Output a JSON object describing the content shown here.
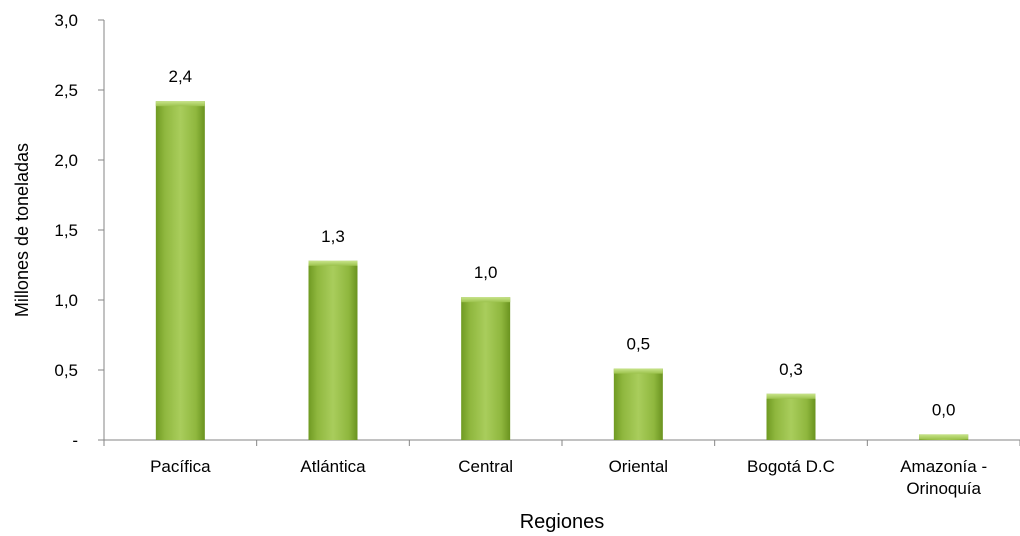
{
  "chart_data": {
    "type": "bar",
    "title": "",
    "xlabel": "Regiones",
    "ylabel": "Millones de toneladas",
    "categories": [
      [
        "Pacífica"
      ],
      [
        "Atlántica"
      ],
      [
        "Central"
      ],
      [
        "Oriental"
      ],
      [
        "Bogotá D.C"
      ],
      [
        "Amazonía -",
        "Orinoquía"
      ]
    ],
    "values": [
      2.42,
      1.28,
      1.02,
      0.51,
      0.33,
      0.04
    ],
    "data_labels": [
      "2,4",
      "1,3",
      "1,0",
      "0,5",
      "0,3",
      "0,0"
    ],
    "ylim": [
      0,
      3.0
    ],
    "y_ticks": [
      {
        "value": 0,
        "label": "-"
      },
      {
        "value": 0.5,
        "label": "0,5"
      },
      {
        "value": 1.0,
        "label": "1,0"
      },
      {
        "value": 1.5,
        "label": "1,5"
      },
      {
        "value": 2.0,
        "label": "2,0"
      },
      {
        "value": 2.5,
        "label": "2,5"
      },
      {
        "value": 3.0,
        "label": "3,0"
      }
    ],
    "grid": false,
    "legend": "none",
    "bar_color": "#8db33a"
  }
}
